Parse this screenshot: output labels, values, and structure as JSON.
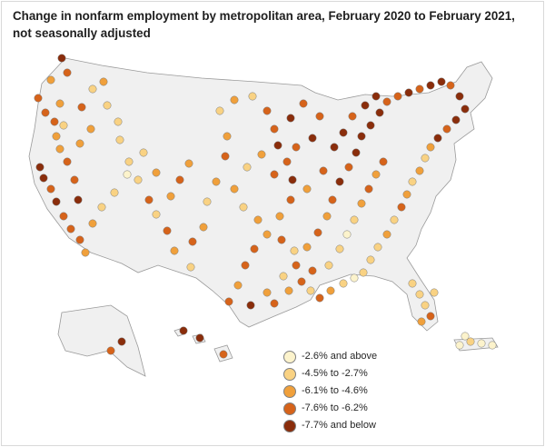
{
  "title": "Change in nonfarm employment by metropolitan area, February 2020 to February 2021, not seasonally adjusted",
  "legend": {
    "items": [
      {
        "label": "-2.6% and above",
        "color": "#fcf3cc"
      },
      {
        "label": "-4.5% to -2.7%",
        "color": "#f9d283"
      },
      {
        "label": "-6.1% to -4.6%",
        "color": "#f0a03b"
      },
      {
        "label": "-7.6% to -6.2%",
        "color": "#d6631a"
      },
      {
        "label": "-7.7% and below",
        "color": "#8a2d0b"
      }
    ]
  },
  "map_data": {
    "region": "United States, Alaska, Hawaii, Puerto Rico",
    "color_scale": [
      "#fcf3cc",
      "#f9d283",
      "#f0a03b",
      "#d6631a",
      "#8a2d0b"
    ]
  }
}
